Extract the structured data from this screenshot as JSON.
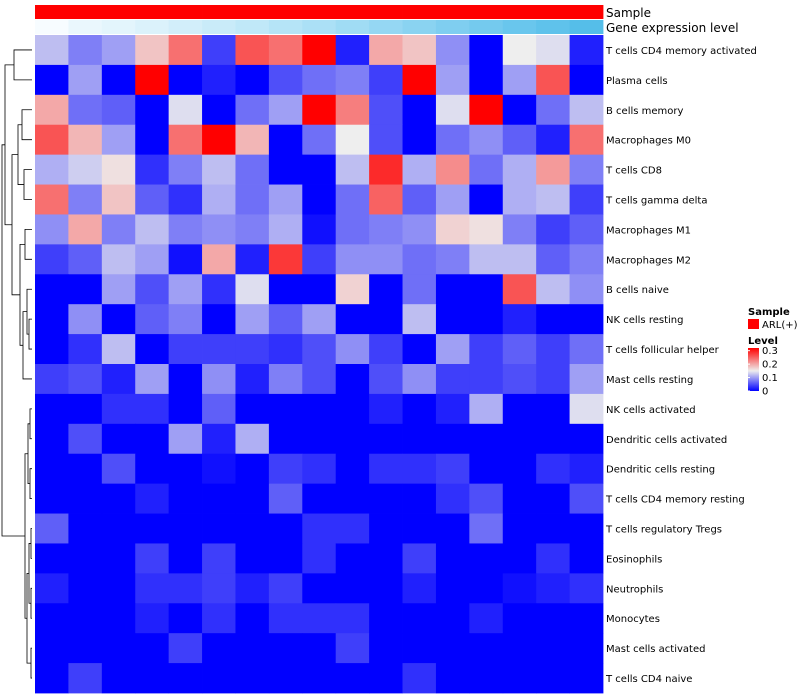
{
  "chart_data": {
    "type": "heatmap",
    "annotations": [
      {
        "name": "Sample",
        "colors": [
          "#ff0000",
          "#ff0000",
          "#ff0000",
          "#ff0000",
          "#ff0000",
          "#ff0000",
          "#ff0000",
          "#ff0000",
          "#ff0000",
          "#ff0000",
          "#ff0000",
          "#ff0000",
          "#ff0000",
          "#ff0000",
          "#ff0000",
          "#ff0000",
          "#ff0000"
        ]
      },
      {
        "name": "Gene expression level",
        "colors": [
          "#f7fcff",
          "#eaf7fd",
          "#e3f5fc",
          "#dbf2fb",
          "#d2eefa",
          "#c9ebf9",
          "#c0e8f8",
          "#b5e4f7",
          "#abe0f6",
          "#a0dcf4",
          "#95d7f3",
          "#8ad3f1",
          "#7fcef0",
          "#74caee",
          "#69c6ed",
          "#5fc2eb",
          "#55bee9"
        ]
      }
    ],
    "rows": [
      "T cells CD4 memory activated",
      "Plasma cells",
      "B cells memory",
      "Macrophages M0",
      "T cells CD8",
      "T cells gamma delta",
      "Macrophages M1",
      "Macrophages M2",
      "B cells naive",
      "NK cells resting",
      "T cells follicular helper",
      "Mast cells resting",
      "NK cells activated",
      "Dendritic cells activated",
      "Dendritic cells resting",
      "T cells CD4 memory resting",
      "T cells regulatory  Tregs",
      "Eosinophils",
      "Neutrophils",
      "Monocytes",
      "Mast cells activated",
      "T cells CD4 naive"
    ],
    "n_columns": 17,
    "values": [
      [
        0.12,
        0.08,
        0.1,
        0.18,
        0.24,
        0.04,
        0.26,
        0.24,
        0.32,
        0.02,
        0.2,
        0.18,
        0.09,
        0.0,
        0.15,
        0.14,
        0.02
      ],
      [
        0.0,
        0.1,
        0.0,
        0.32,
        0.0,
        0.02,
        0.0,
        0.05,
        0.07,
        0.08,
        0.04,
        0.32,
        0.1,
        0.0,
        0.1,
        0.26,
        0.0
      ],
      [
        0.2,
        0.07,
        0.06,
        0.0,
        0.14,
        0.0,
        0.07,
        0.1,
        0.32,
        0.23,
        0.05,
        0.0,
        0.14,
        0.32,
        0.0,
        0.07,
        0.12
      ],
      [
        0.26,
        0.19,
        0.1,
        0.0,
        0.24,
        0.32,
        0.19,
        0.0,
        0.07,
        0.15,
        0.05,
        0.0,
        0.07,
        0.09,
        0.06,
        0.02,
        0.24
      ],
      [
        0.11,
        0.13,
        0.16,
        0.03,
        0.08,
        0.12,
        0.07,
        0.0,
        0.0,
        0.12,
        0.29,
        0.11,
        0.22,
        0.07,
        0.11,
        0.21,
        0.08
      ],
      [
        0.24,
        0.08,
        0.18,
        0.06,
        0.03,
        0.11,
        0.07,
        0.1,
        0.0,
        0.07,
        0.25,
        0.06,
        0.1,
        0.0,
        0.11,
        0.12,
        0.04
      ],
      [
        0.09,
        0.2,
        0.08,
        0.12,
        0.08,
        0.09,
        0.08,
        0.11,
        0.01,
        0.07,
        0.08,
        0.09,
        0.17,
        0.16,
        0.08,
        0.04,
        0.06
      ],
      [
        0.04,
        0.06,
        0.12,
        0.1,
        0.01,
        0.2,
        0.02,
        0.28,
        0.04,
        0.09,
        0.09,
        0.07,
        0.08,
        0.12,
        0.12,
        0.06,
        0.08
      ],
      [
        0.0,
        0.0,
        0.1,
        0.05,
        0.1,
        0.03,
        0.14,
        0.0,
        0.0,
        0.17,
        0.0,
        0.07,
        0.0,
        0.0,
        0.26,
        0.12,
        0.09
      ],
      [
        0.0,
        0.09,
        0.0,
        0.06,
        0.08,
        0.0,
        0.1,
        0.06,
        0.1,
        0.0,
        0.0,
        0.12,
        0.0,
        0.0,
        0.02,
        0.0,
        0.0
      ],
      [
        0.0,
        0.03,
        0.12,
        0.0,
        0.04,
        0.04,
        0.04,
        0.03,
        0.05,
        0.09,
        0.04,
        0.0,
        0.1,
        0.04,
        0.06,
        0.04,
        0.07
      ],
      [
        0.04,
        0.05,
        0.02,
        0.1,
        0.0,
        0.09,
        0.02,
        0.08,
        0.05,
        0.0,
        0.05,
        0.09,
        0.04,
        0.04,
        0.05,
        0.04,
        0.1
      ],
      [
        0.0,
        0.0,
        0.03,
        0.03,
        0.0,
        0.06,
        0.0,
        0.0,
        0.0,
        0.0,
        0.02,
        0.0,
        0.02,
        0.11,
        0.0,
        0.0,
        0.14
      ],
      [
        0.0,
        0.05,
        0.0,
        0.0,
        0.1,
        0.02,
        0.11,
        0.0,
        0.0,
        0.0,
        0.0,
        0.0,
        0.0,
        0.0,
        0.0,
        0.0,
        0.0
      ],
      [
        0.0,
        0.0,
        0.05,
        0.0,
        0.0,
        0.01,
        0.0,
        0.04,
        0.03,
        0.0,
        0.03,
        0.03,
        0.04,
        0.0,
        0.0,
        0.03,
        0.02
      ],
      [
        0.0,
        0.0,
        0.0,
        0.02,
        0.0,
        0.0,
        0.0,
        0.06,
        0.0,
        0.0,
        0.0,
        0.0,
        0.03,
        0.05,
        0.0,
        0.0,
        0.05
      ],
      [
        0.06,
        0.0,
        0.0,
        0.0,
        0.0,
        0.0,
        0.0,
        0.0,
        0.03,
        0.03,
        0.0,
        0.0,
        0.0,
        0.07,
        0.0,
        0.0,
        0.0
      ],
      [
        0.0,
        0.0,
        0.0,
        0.04,
        0.0,
        0.04,
        0.0,
        0.0,
        0.03,
        0.0,
        0.0,
        0.04,
        0.0,
        0.0,
        0.0,
        0.03,
        0.0
      ],
      [
        0.02,
        0.0,
        0.0,
        0.03,
        0.03,
        0.04,
        0.02,
        0.04,
        0.0,
        0.0,
        0.0,
        0.02,
        0.0,
        0.0,
        0.01,
        0.02,
        0.03
      ],
      [
        0.0,
        0.0,
        0.0,
        0.02,
        0.0,
        0.03,
        0.0,
        0.03,
        0.03,
        0.03,
        0.0,
        0.0,
        0.0,
        0.02,
        0.0,
        0.0,
        0.0
      ],
      [
        0.0,
        0.0,
        0.0,
        0.0,
        0.04,
        0.0,
        0.0,
        0.0,
        0.0,
        0.04,
        0.0,
        0.0,
        0.0,
        0.0,
        0.0,
        0.0,
        0.0
      ],
      [
        0.0,
        0.04,
        0.0,
        0.0,
        0.0,
        0.0,
        0.0,
        0.0,
        0.0,
        0.0,
        0.0,
        0.03,
        0.0,
        0.0,
        0.0,
        0.0,
        0.0
      ]
    ],
    "color_scale": {
      "min": 0,
      "mid": 0.15,
      "max": 0.32,
      "low": "#0000ff",
      "midcolor": "#eeeeee",
      "high": "#ff0000"
    },
    "legend": {
      "sample_title": "Sample",
      "sample_entry": "ARL(+)",
      "sample_color": "#ff0000",
      "level_title": "Level",
      "level_ticks": [
        {
          "label": "0.3",
          "value": 0.3
        },
        {
          "label": "0.2",
          "value": 0.2
        },
        {
          "label": "0.1",
          "value": 0.1
        },
        {
          "label": "0",
          "value": 0.0
        }
      ]
    }
  }
}
